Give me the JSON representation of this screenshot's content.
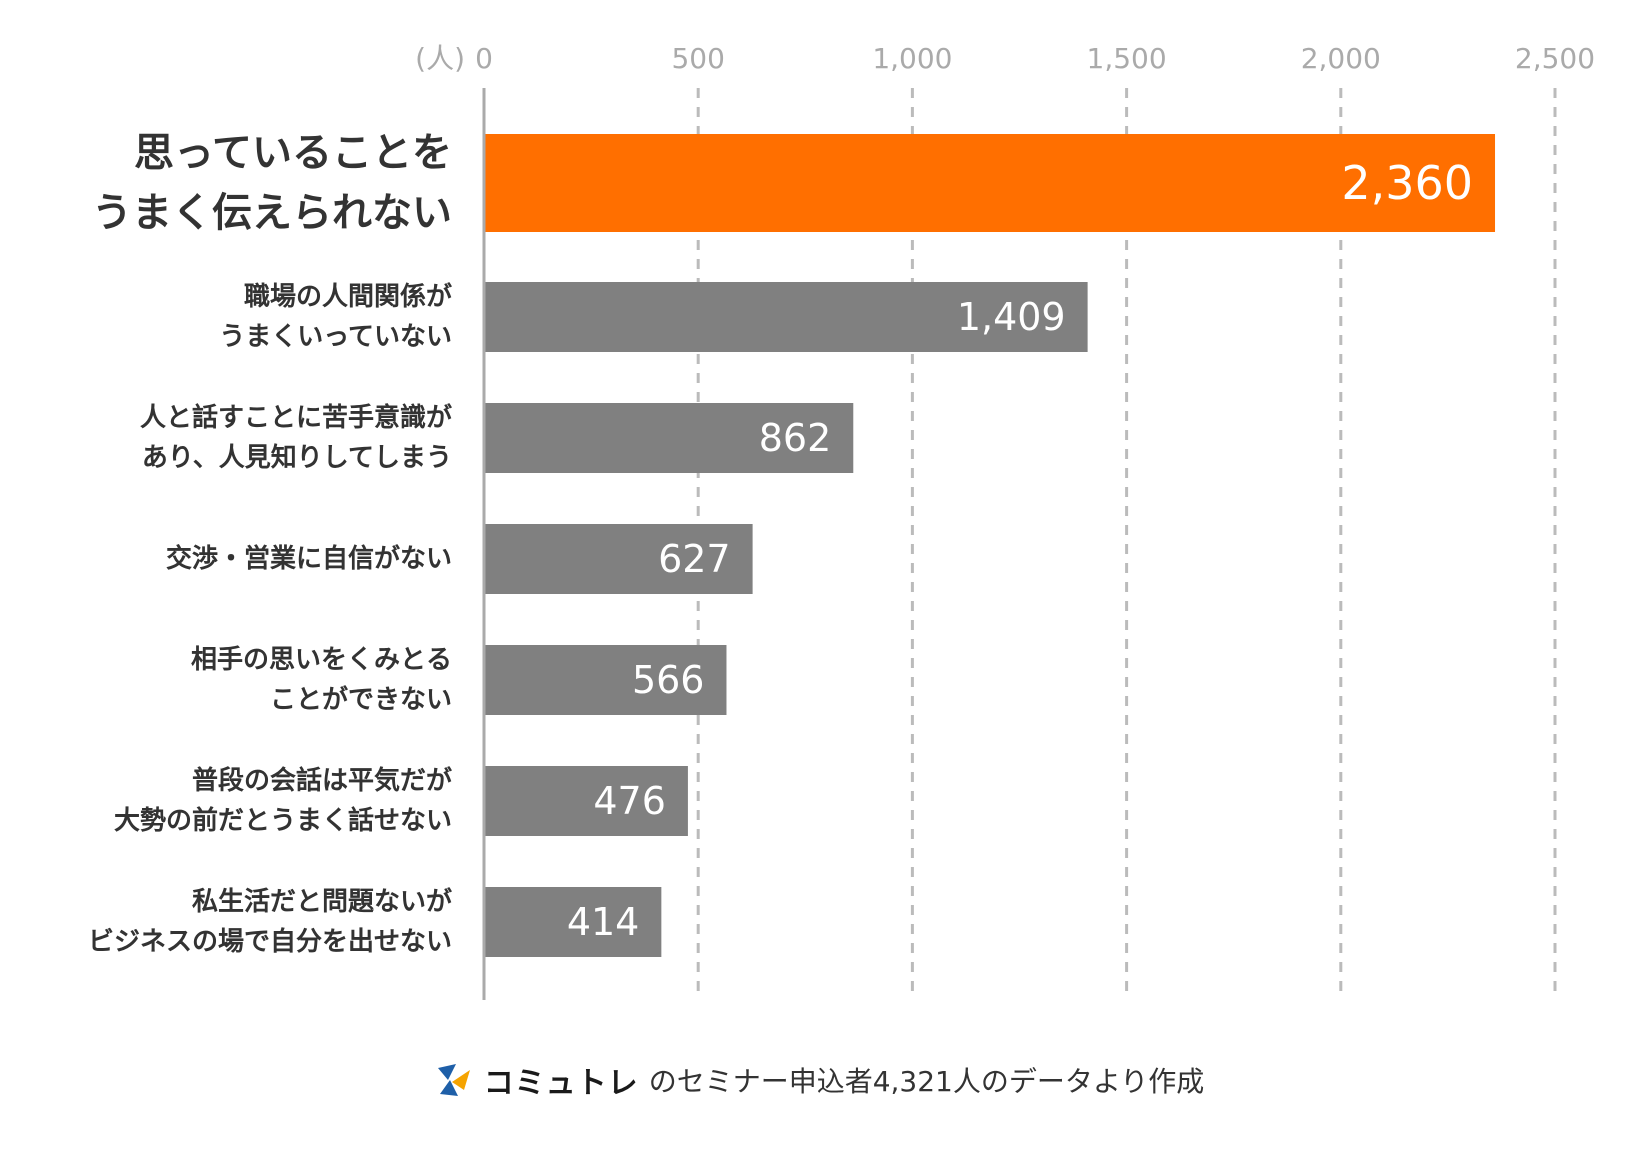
{
  "chart_data": {
    "type": "bar",
    "orientation": "horizontal",
    "unit_label": "(人)",
    "xlim": [
      0,
      2500
    ],
    "ticks": [
      "0",
      "500",
      "1,000",
      "1,500",
      "2,000",
      "2,500"
    ],
    "tick_values": [
      0,
      500,
      1000,
      1500,
      2000,
      2500
    ],
    "grid": "vertical dashed",
    "categories": [
      [
        "思っていることを",
        "うまく伝えられない"
      ],
      [
        "職場の人間関係が",
        "うまくいっていない"
      ],
      [
        "人と話すことに苦手意識が",
        "あり、人見知りしてしまう"
      ],
      [
        "交渉・営業に自信がない"
      ],
      [
        "相手の思いをくみとる",
        "ことができない"
      ],
      [
        "普段の会話は平気だが",
        "大勢の前だとうまく話せない"
      ],
      [
        "私生活だと問題ないが",
        "ビジネスの場で自分を出せない"
      ]
    ],
    "values": [
      2360,
      1409,
      862,
      627,
      566,
      476,
      414
    ],
    "value_labels": [
      "2,360",
      "1,409",
      "862",
      "627",
      "566",
      "476",
      "414"
    ],
    "highlight_index": 0,
    "colors": {
      "highlight": "#FF6F00",
      "default": "#808080",
      "grid": "#bbbbbb",
      "tick": "#aaaaaa",
      "axis": "#aaaaaa"
    }
  },
  "footer": {
    "brand": "コミュトレ",
    "text": "のセミナー申込者4,321人のデータより作成",
    "logo_icon": "comutore-logo-icon"
  }
}
